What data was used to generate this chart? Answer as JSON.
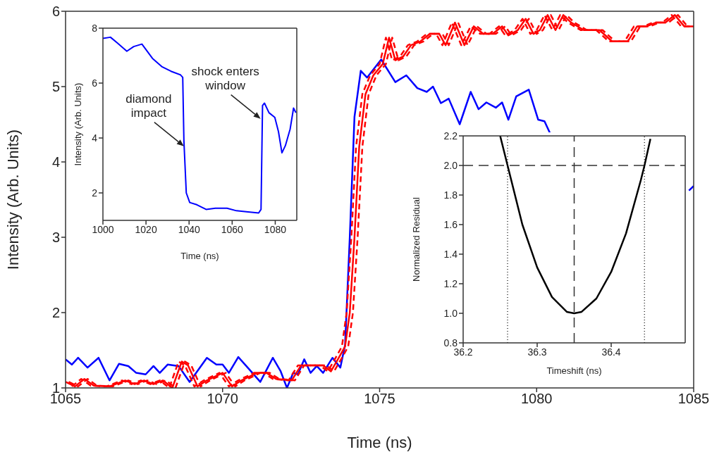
{
  "chart_data": [
    {
      "type": "line",
      "xlabel": "Time (ns)",
      "ylabel": "Intensity (Arb. Units)",
      "xlim": [
        1065,
        1085
      ],
      "ylim": [
        1,
        6
      ],
      "xticks": [
        1065,
        1070,
        1075,
        1080,
        1085
      ],
      "yticks": [
        1,
        2,
        3,
        4,
        5,
        6
      ],
      "series": [
        {
          "color": "#0000ff",
          "x": [
            1065,
            1065.2,
            1065.4,
            1065.7,
            1066.05,
            1066.4,
            1066.7,
            1067.0,
            1067.25,
            1067.55,
            1067.8,
            1068.0,
            1068.25,
            1068.6,
            1068.95,
            1069.5,
            1069.8,
            1070.0,
            1070.2,
            1070.5,
            1070.8,
            1071.2,
            1071.6,
            1071.85,
            1072.05,
            1072.25,
            1072.4,
            1072.6,
            1072.8,
            1073.0,
            1073.2,
            1073.5,
            1073.75,
            1073.9,
            1074.05,
            1074.2,
            1074.4,
            1074.6,
            1075.05,
            1075.5,
            1075.85,
            1076.2,
            1076.5,
            1076.7,
            1076.95,
            1077.2,
            1077.55,
            1077.9,
            1078.15,
            1078.4,
            1078.7,
            1078.9,
            1079.1,
            1079.35,
            1079.75,
            1080.05,
            1080.25,
            1080.45,
            1082.0,
            1084.85,
            1085
          ],
          "values": [
            1.38,
            1.31,
            1.4,
            1.27,
            1.4,
            1.1,
            1.32,
            1.29,
            1.2,
            1.18,
            1.29,
            1.2,
            1.31,
            1.29,
            1.08,
            1.4,
            1.31,
            1.31,
            1.2,
            1.41,
            1.27,
            1.08,
            1.4,
            1.22,
            1.0,
            1.2,
            1.18,
            1.38,
            1.2,
            1.29,
            1.2,
            1.4,
            1.27,
            1.57,
            3.0,
            4.6,
            5.21,
            5.12,
            5.36,
            5.06,
            5.15,
            4.98,
            4.93,
            5.0,
            4.78,
            4.84,
            4.5,
            4.93,
            4.7,
            4.79,
            4.72,
            4.79,
            4.56,
            4.87,
            4.96,
            4.56,
            4.54,
            4.36,
            null,
            3.62,
            3.68
          ]
        },
        {
          "color": "#ff0000",
          "line_style": "solid",
          "x": [
            1065,
            1065.3,
            1065.6,
            1065.9,
            1066.4,
            1066.9,
            1067.2,
            1067.5,
            1067.8,
            1068.1,
            1068.4,
            1068.7,
            1068.9,
            1069.2,
            1069.5,
            1070.0,
            1070.3,
            1070.6,
            1071.1,
            1071.4,
            1071.7,
            1072.2,
            1072.5,
            1073.2,
            1073.45,
            1073.7,
            1073.9,
            1074.05,
            1074.2,
            1074.35,
            1074.55,
            1074.8,
            1075.1,
            1075.3,
            1075.5,
            1075.75,
            1076.0,
            1076.3,
            1076.6,
            1076.9,
            1077.1,
            1077.4,
            1077.7,
            1078.0,
            1078.3,
            1078.6,
            1078.9,
            1079.1,
            1079.4,
            1079.65,
            1079.9,
            1080.1,
            1080.35,
            1080.6,
            1080.85,
            1081.1,
            1081.5,
            1082.0,
            1082.4,
            1082.9,
            1083.2,
            1083.5,
            1083.8,
            1084.1,
            1084.4,
            1084.7,
            1085
          ],
          "values": [
            1.08,
            1.02,
            1.12,
            1.03,
            1.02,
            1.1,
            1.05,
            1.1,
            1.05,
            1.1,
            1.0,
            1.35,
            1.3,
            1.02,
            1.1,
            1.2,
            1.02,
            1.1,
            1.2,
            1.2,
            1.12,
            1.1,
            1.3,
            1.3,
            1.22,
            1.4,
            1.55,
            2.0,
            3.0,
            4.2,
            4.9,
            5.15,
            5.3,
            5.65,
            5.35,
            5.4,
            5.55,
            5.6,
            5.7,
            5.7,
            5.55,
            5.85,
            5.55,
            5.8,
            5.7,
            5.7,
            5.8,
            5.68,
            5.75,
            5.9,
            5.7,
            5.75,
            5.95,
            5.75,
            5.95,
            5.85,
            5.75,
            5.75,
            5.6,
            5.6,
            5.8,
            5.8,
            5.85,
            5.85,
            5.95,
            5.8,
            5.8
          ]
        },
        {
          "color": "#ff0000",
          "line_style": "dashed",
          "x": [
            1065.2,
            1065.5,
            1065.8,
            1066.3,
            1066.8,
            1067.1,
            1067.4,
            1067.7,
            1068.0,
            1068.3,
            1068.6,
            1068.8,
            1069.1,
            1069.4,
            1069.9,
            1070.2,
            1070.5,
            1071.0,
            1071.3,
            1071.6,
            1072.1,
            1072.4,
            1073.1,
            1073.35,
            1073.6,
            1073.8,
            1073.95,
            1074.1,
            1074.25,
            1074.45,
            1074.7,
            1075.0,
            1075.2,
            1075.4,
            1075.65,
            1075.9,
            1076.2,
            1076.5,
            1076.8,
            1077.0,
            1077.3,
            1077.6,
            1077.9,
            1078.2,
            1078.5,
            1078.8,
            1079.0,
            1079.3,
            1079.55,
            1079.8,
            1080.0,
            1080.25,
            1080.5,
            1080.75,
            1081.0,
            1081.4,
            1081.9,
            1082.3,
            1082.8,
            1083.1,
            1083.4,
            1083.7,
            1084.0,
            1084.3,
            1084.6,
            1084.9
          ],
          "values": [
            1.02,
            1.12,
            1.03,
            1.02,
            1.1,
            1.05,
            1.1,
            1.05,
            1.1,
            1.0,
            1.35,
            1.3,
            1.02,
            1.1,
            1.2,
            1.02,
            1.1,
            1.2,
            1.2,
            1.12,
            1.1,
            1.3,
            1.3,
            1.22,
            1.4,
            1.55,
            2.0,
            3.0,
            4.2,
            4.9,
            5.15,
            5.3,
            5.65,
            5.35,
            5.4,
            5.55,
            5.6,
            5.7,
            5.7,
            5.55,
            5.85,
            5.55,
            5.8,
            5.7,
            5.7,
            5.8,
            5.68,
            5.75,
            5.9,
            5.7,
            5.75,
            5.95,
            5.75,
            5.95,
            5.85,
            5.75,
            5.75,
            5.6,
            5.6,
            5.8,
            5.8,
            5.85,
            5.85,
            5.95,
            5.8,
            5.8
          ]
        },
        {
          "color": "#ff0000",
          "line_style": "dashed",
          "x": [
            1065.1,
            1065.4,
            1065.7,
            1066.0,
            1066.5,
            1067.0,
            1067.3,
            1067.6,
            1067.9,
            1068.2,
            1068.5,
            1068.8,
            1069.0,
            1069.3,
            1069.6,
            1070.1,
            1070.4,
            1070.7,
            1071.2,
            1071.5,
            1071.8,
            1072.3,
            1072.6,
            1073.3,
            1073.55,
            1073.8,
            1074.0,
            1074.15,
            1074.3,
            1074.45,
            1074.65,
            1074.9,
            1075.2,
            1075.4,
            1075.6,
            1075.85,
            1076.1,
            1076.4,
            1076.7,
            1077.0,
            1077.2,
            1077.5,
            1077.8,
            1078.1,
            1078.4,
            1078.7,
            1079.0,
            1079.2,
            1079.5,
            1079.75,
            1080.0,
            1080.2,
            1080.45,
            1080.7,
            1080.95,
            1081.2,
            1081.6,
            1082.1,
            1082.5,
            1083.0,
            1083.3,
            1083.6,
            1083.9,
            1084.2,
            1084.5,
            1084.8
          ],
          "values": [
            1.08,
            1.02,
            1.12,
            1.03,
            1.02,
            1.1,
            1.05,
            1.1,
            1.05,
            1.1,
            1.0,
            1.35,
            1.3,
            1.02,
            1.1,
            1.2,
            1.02,
            1.1,
            1.2,
            1.2,
            1.12,
            1.1,
            1.3,
            1.3,
            1.22,
            1.4,
            1.55,
            2.0,
            3.0,
            4.2,
            4.9,
            5.15,
            5.3,
            5.65,
            5.35,
            5.4,
            5.55,
            5.6,
            5.7,
            5.7,
            5.55,
            5.85,
            5.55,
            5.8,
            5.7,
            5.7,
            5.8,
            5.68,
            5.75,
            5.9,
            5.7,
            5.75,
            5.95,
            5.75,
            5.95,
            5.85,
            5.75,
            5.75,
            5.6,
            5.6,
            5.8,
            5.8,
            5.85,
            5.85,
            5.95,
            5.8
          ]
        }
      ]
    },
    {
      "type": "line",
      "xlabel": "Time (ns)",
      "ylabel": "Intensity (Arb. Units)",
      "xlim": [
        1000,
        1090
      ],
      "ylim": [
        1,
        8
      ],
      "xticks": [
        1000,
        1020,
        1040,
        1060,
        1080
      ],
      "yticks": [
        2,
        4,
        6,
        8
      ],
      "series": [
        {
          "color": "#0000ff",
          "x": [
            1000,
            1003.5,
            1006.7,
            1011.1,
            1014.3,
            1018.1,
            1023.0,
            1027.3,
            1031.6,
            1036.0,
            1037.05,
            1037.6,
            1038.7,
            1040.3,
            1043.6,
            1047.9,
            1052.2,
            1057.6,
            1062.0,
            1067.4,
            1072.3,
            1073.4,
            1074.1,
            1075.0,
            1077.1,
            1079.8,
            1081.5,
            1083.1,
            1084.7,
            1086.9,
            1088.5,
            1089.6
          ],
          "values": [
            7.63,
            7.67,
            7.46,
            7.16,
            7.33,
            7.42,
            6.9,
            6.6,
            6.43,
            6.3,
            6.21,
            3.89,
            2.0,
            1.65,
            1.57,
            1.4,
            1.44,
            1.44,
            1.35,
            1.31,
            1.27,
            1.4,
            5.18,
            5.27,
            4.92,
            4.75,
            4.23,
            3.46,
            3.72,
            4.32,
            5.09,
            4.92
          ]
        }
      ],
      "annotations": [
        {
          "text": "diamond impact",
          "x": 1037.6,
          "y": 3.7
        },
        {
          "text": "shock enters window",
          "x": 1073.2,
          "y": 4.7
        }
      ]
    },
    {
      "type": "line",
      "xlabel": "Timeshift (ns)",
      "ylabel": "Normalized Residual",
      "xlim": [
        36.2,
        36.5
      ],
      "ylim": [
        0.8,
        2.2
      ],
      "xticks": [
        36.2,
        36.3,
        36.4
      ],
      "yticks": [
        {
          "value": 0.8,
          "label": "0.8"
        },
        {
          "value": 1,
          "label": "1.0"
        },
        {
          "value": 1.2,
          "label": "1.2"
        },
        {
          "value": 1.4,
          "label": "1.4"
        },
        {
          "value": 1.6,
          "label": "1.6"
        },
        {
          "value": 1.8,
          "label": "1.8"
        },
        {
          "value": 2,
          "label": "2.0"
        },
        {
          "value": 2.2,
          "label": "2.2"
        }
      ],
      "series": [
        {
          "color": "#000000",
          "x": [
            36.25,
            36.26,
            36.28,
            36.3,
            36.32,
            36.34,
            36.35,
            36.36,
            36.38,
            36.4,
            36.42,
            36.44,
            36.445,
            36.453
          ],
          "values": [
            2.2,
            2.0,
            1.6,
            1.31,
            1.11,
            1.01,
            1.0,
            1.01,
            1.1,
            1.28,
            1.54,
            1.9,
            2.0,
            2.18
          ]
        }
      ],
      "ref_lines": [
        {
          "axis": "y",
          "value": 2,
          "color": "#333333",
          "line_style": "dashed"
        },
        {
          "axis": "x",
          "value": 36.35,
          "color": "#333333",
          "line_style": "dashed"
        },
        {
          "axis": "x",
          "value": 36.26,
          "color": "#333333",
          "line_style": "dotted"
        },
        {
          "axis": "x",
          "value": 36.445,
          "color": "#333333",
          "line_style": "dotted"
        }
      ]
    }
  ]
}
